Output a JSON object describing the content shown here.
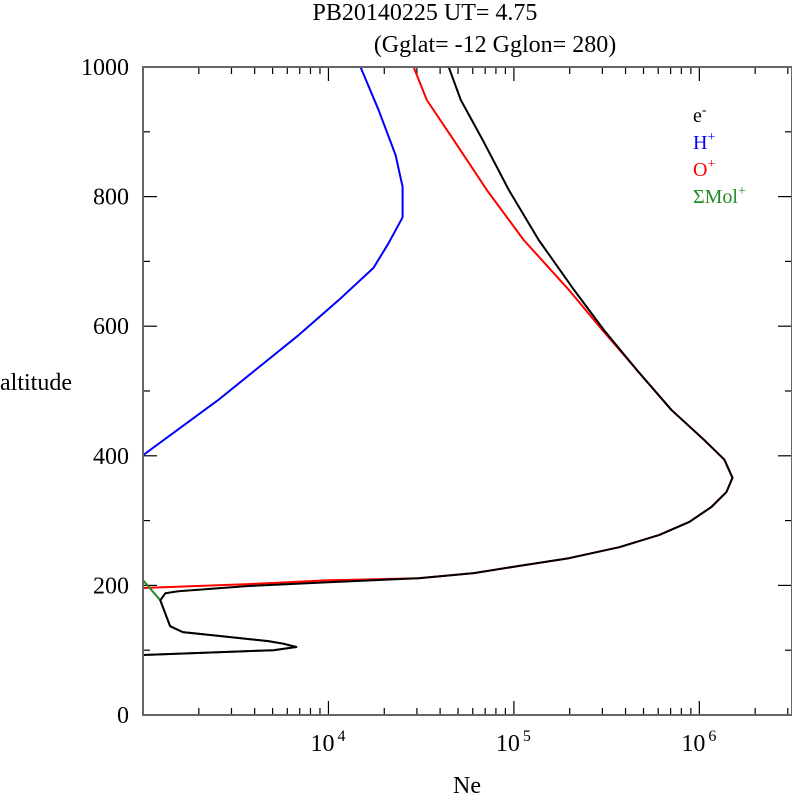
{
  "chart_data": {
    "type": "line",
    "title_line1": "PB20140225   UT=  4.75",
    "title_line2": "(Gglat= -12   Gglon=  280)",
    "xlabel": "Ne",
    "ylabel": "altitude",
    "xscale": "log",
    "xlim": [
      1000,
      3160000
    ],
    "ylim": [
      0,
      1000
    ],
    "yticks": [
      0,
      200,
      400,
      600,
      800,
      1000
    ],
    "ytick_labels": [
      "0",
      "200",
      "400",
      "600",
      "800",
      "1000"
    ],
    "xticks": [
      10000,
      100000,
      1000000
    ],
    "xtick_labels": [
      {
        "base": "10",
        "exp": "4"
      },
      {
        "base": "10",
        "exp": "5"
      },
      {
        "base": "10",
        "exp": "6"
      }
    ],
    "legend_position": "top-right",
    "series": [
      {
        "name": "e-",
        "label": "e",
        "sup": "-",
        "color": "#000000",
        "points": [
          [
            1000,
            92.6
          ],
          [
            5050,
            100
          ],
          [
            6710,
            105
          ],
          [
            5710,
            110
          ],
          [
            4740,
            114
          ],
          [
            1640,
            128
          ],
          [
            1400,
            137
          ],
          [
            1240,
            177
          ],
          [
            1320,
            188
          ],
          [
            1550,
            191
          ],
          [
            3700,
            199
          ],
          [
            10000,
            205
          ],
          [
            30600,
            211
          ],
          [
            60800,
            219
          ],
          [
            106000,
            230
          ],
          [
            198000,
            242
          ],
          [
            370000,
            259
          ],
          [
            608000,
            278
          ],
          [
            883000,
            298
          ],
          [
            1162000,
            321
          ],
          [
            1400000,
            344
          ],
          [
            1510000,
            366
          ],
          [
            1365000,
            394
          ],
          [
            1065000,
            424
          ],
          [
            706000,
            471
          ],
          [
            462000,
            532
          ],
          [
            306000,
            594
          ],
          [
            211000,
            656
          ],
          [
            136000,
            733
          ],
          [
            94000,
            810
          ],
          [
            68000,
            887
          ],
          [
            51700,
            949
          ],
          [
            44500,
            1000
          ]
        ]
      },
      {
        "name": "H+",
        "label": "H",
        "sup": "+",
        "color": "#0000ff",
        "points": [
          [
            1000,
            401
          ],
          [
            2541,
            486
          ],
          [
            6887,
            586
          ],
          [
            11324,
            640
          ],
          [
            17500,
            690
          ],
          [
            21090,
            728
          ],
          [
            25120,
            768
          ],
          [
            25120,
            815
          ],
          [
            23010,
            864
          ],
          [
            18620,
            934
          ],
          [
            14890,
            1000
          ]
        ]
      },
      {
        "name": "O+",
        "label": "O",
        "sup": "+",
        "color": "#ff0000",
        "points": [
          [
            1000,
            196
          ],
          [
            3700,
            202
          ],
          [
            10000,
            208
          ],
          [
            30600,
            211
          ],
          [
            60800,
            219
          ],
          [
            106000,
            230
          ],
          [
            198000,
            242
          ],
          [
            370000,
            259
          ],
          [
            608000,
            278
          ],
          [
            883000,
            298
          ],
          [
            1162000,
            321
          ],
          [
            1400000,
            344
          ],
          [
            1510000,
            366
          ],
          [
            1365000,
            394
          ],
          [
            1065000,
            424
          ],
          [
            706000,
            471
          ],
          [
            462000,
            532
          ],
          [
            300000,
            594
          ],
          [
            198000,
            656
          ],
          [
            113000,
            733
          ],
          [
            71500,
            810
          ],
          [
            47400,
            887
          ],
          [
            33900,
            949
          ],
          [
            28800,
            1000
          ]
        ]
      },
      {
        "name": "ΣMol+",
        "label": "ΣMol",
        "sup": "+",
        "color": "#228b22",
        "points": [
          [
            1000,
            208
          ],
          [
            1240,
            177
          ],
          [
            1400,
            137
          ],
          [
            1640,
            128
          ],
          [
            4740,
            114
          ],
          [
            5710,
            110
          ],
          [
            6710,
            105
          ],
          [
            5050,
            100
          ],
          [
            1000,
            92.6
          ]
        ]
      }
    ]
  }
}
